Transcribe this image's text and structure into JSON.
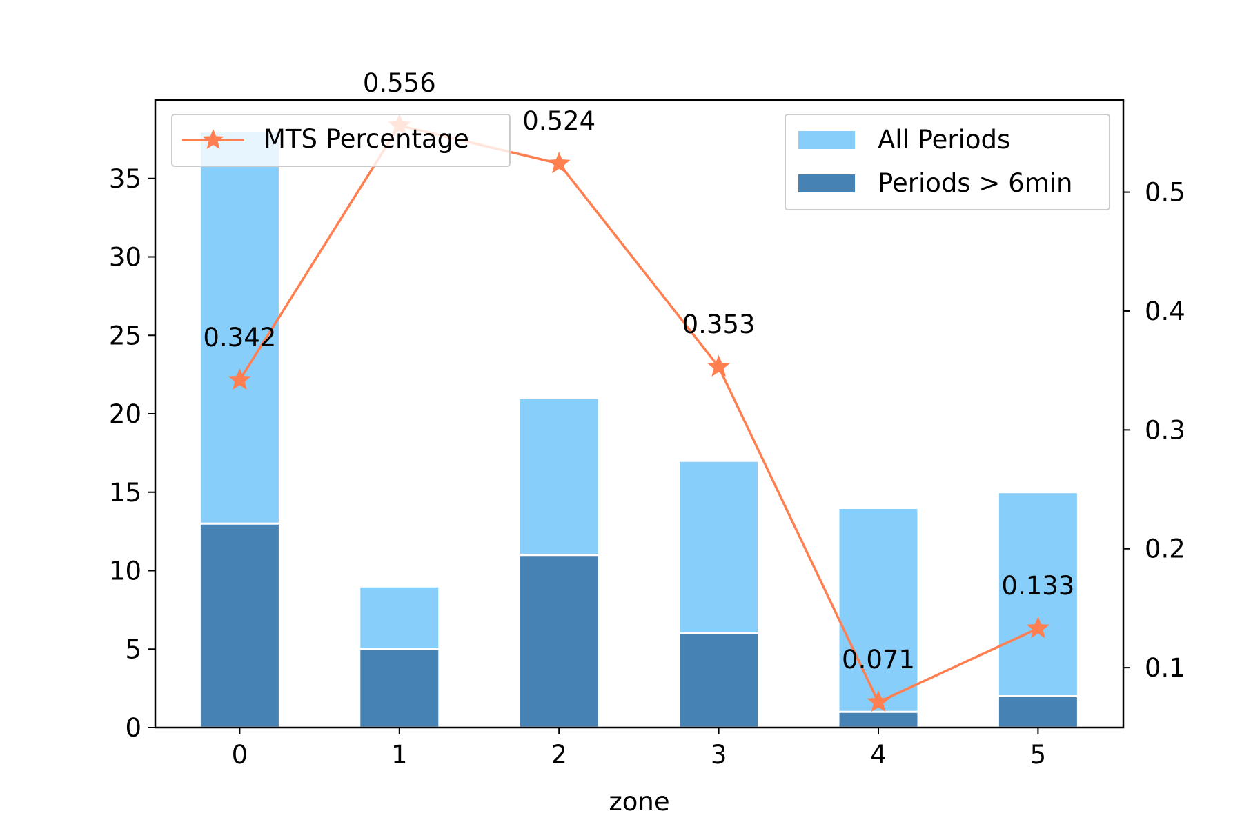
{
  "chart_data": {
    "type": "bar",
    "xlabel": "zone",
    "categories": [
      "0",
      "1",
      "2",
      "3",
      "4",
      "5"
    ],
    "y_left": {
      "ylim": [
        0,
        40
      ],
      "ticks": [
        0,
        5,
        10,
        15,
        20,
        25,
        30,
        35
      ],
      "tick_labels": [
        "0",
        "5",
        "10",
        "15",
        "20",
        "25",
        "30",
        "35"
      ]
    },
    "y_right": {
      "ylim": [
        0.0496,
        0.5775
      ],
      "ticks": [
        0.1,
        0.2,
        0.3,
        0.4,
        0.5
      ],
      "tick_labels": [
        "0.1",
        "0.2",
        "0.3",
        "0.4",
        "0.5"
      ]
    },
    "bar_series": [
      {
        "name": "All Periods",
        "values": [
          38,
          9,
          21,
          17,
          14,
          15
        ],
        "color": "#87CEFA"
      },
      {
        "name": "Periods > 6min",
        "values": [
          13,
          5,
          11,
          6,
          1,
          2
        ],
        "color": "#4682B4"
      }
    ],
    "line_series": {
      "name": "MTS Percentage",
      "values": [
        0.342,
        0.556,
        0.524,
        0.353,
        0.071,
        0.133
      ],
      "labels": [
        "0.342",
        "0.556",
        "0.524",
        "0.353",
        "0.071",
        "0.133"
      ],
      "color": "#FF7F50",
      "marker": "star"
    },
    "legends": {
      "line": "top-left",
      "bars": "top-right"
    },
    "grid": false
  }
}
